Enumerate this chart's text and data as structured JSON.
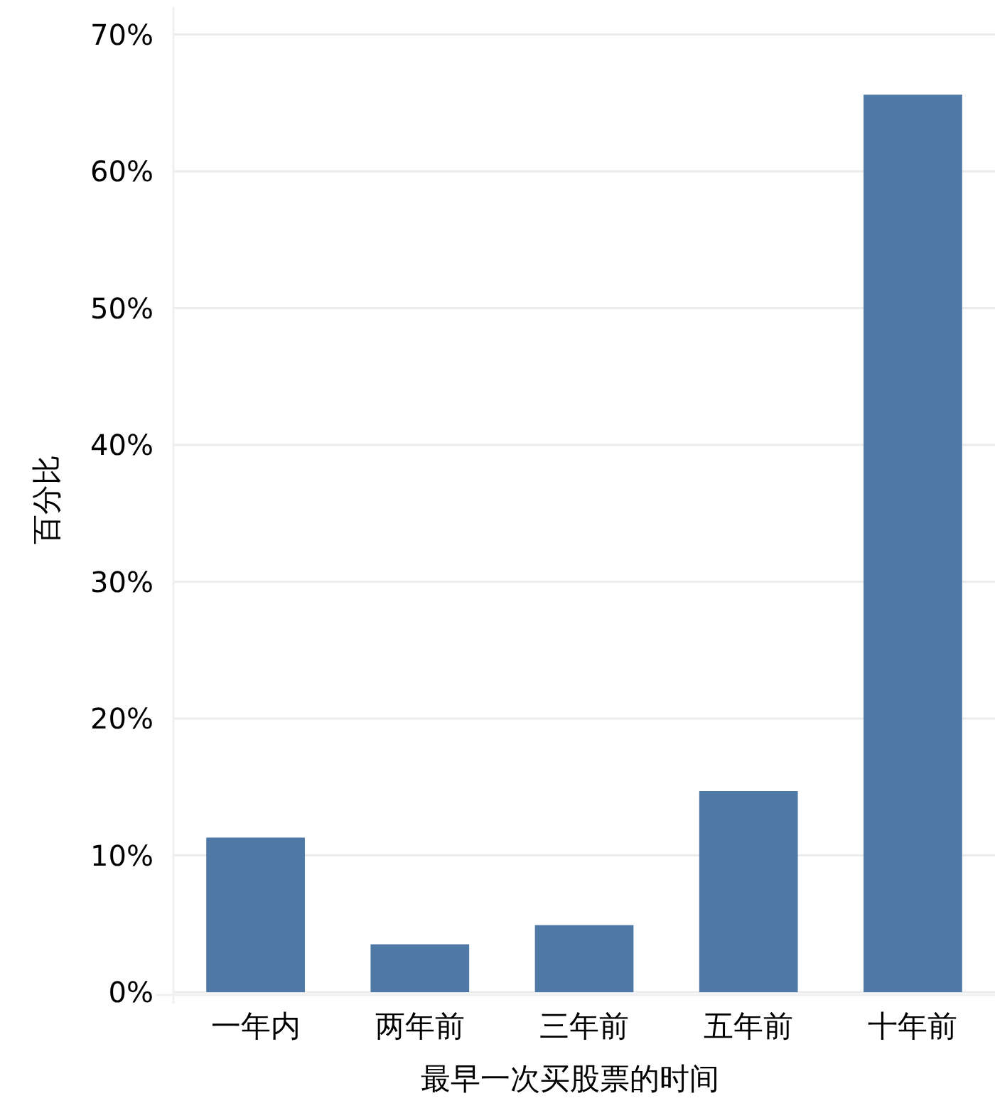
{
  "chart_data": {
    "type": "bar",
    "xlabel": "最早一次买股票的时间",
    "ylabel": "百分比",
    "categories": [
      "一年内",
      "两年前",
      "三年前",
      "五年前",
      "十年前"
    ],
    "values": [
      11.3,
      3.5,
      4.9,
      14.7,
      65.6
    ],
    "color": "#4e79a7",
    "ylim": [
      0,
      72
    ],
    "yticks": [
      {
        "value": 0,
        "label": "0%"
      },
      {
        "value": 10,
        "label": "10%"
      },
      {
        "value": 20,
        "label": "20%"
      },
      {
        "value": 30,
        "label": "30%"
      },
      {
        "value": 40,
        "label": "40%"
      },
      {
        "value": 50,
        "label": "50%"
      },
      {
        "value": 60,
        "label": "60%"
      },
      {
        "value": 70,
        "label": "70%"
      }
    ],
    "grid": "y"
  }
}
